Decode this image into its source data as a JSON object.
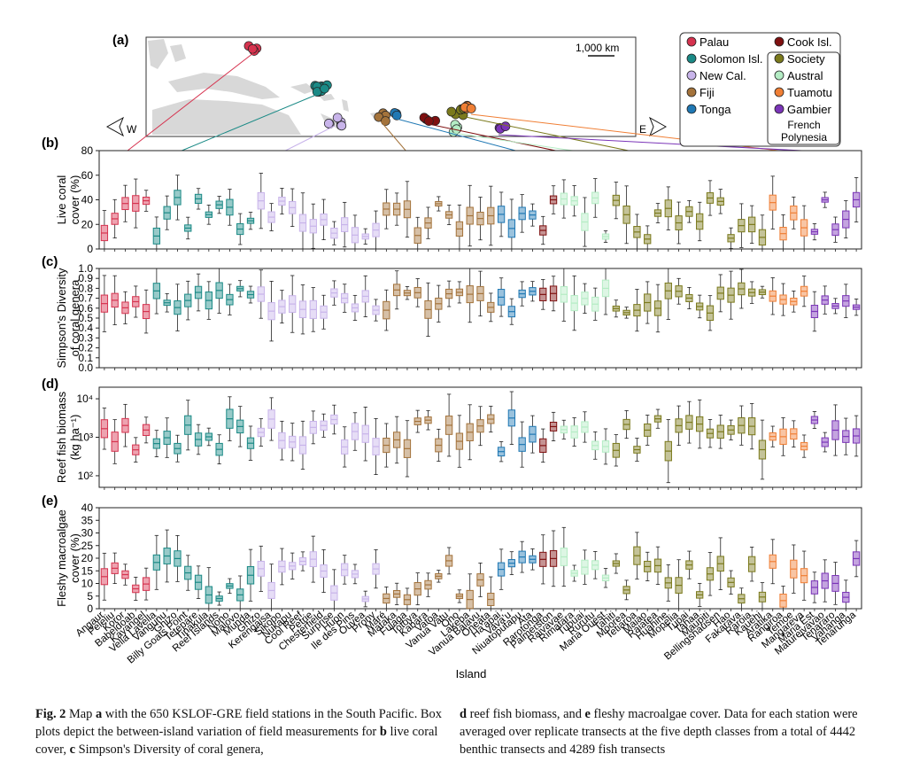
{
  "panel_labels": [
    "(a)",
    "(b)",
    "(c)",
    "(d)",
    "(e)"
  ],
  "map": {
    "scale_label": "1,000 km",
    "compass_west": "W",
    "compass_east": "E",
    "legend": [
      {
        "name": "Palau",
        "color": "#d6334f"
      },
      {
        "name": "Solomon Isl.",
        "color": "#1a8a86"
      },
      {
        "name": "New Cal.",
        "color": "#c8b4ea"
      },
      {
        "name": "Fiji",
        "color": "#a4733b"
      },
      {
        "name": "Tonga",
        "color": "#1f78b4"
      },
      {
        "name": "Cook Isl.",
        "color": "#7f1010"
      },
      {
        "name": "Society",
        "color": "#7b7a1c"
      },
      {
        "name": "Austral",
        "color": "#b4ecc4"
      },
      {
        "name": "Tuamotu",
        "color": "#f07f35"
      },
      {
        "name": "Gambier",
        "color": "#7b35b8"
      }
    ],
    "legend_group_label": [
      "French",
      "Polynesia"
    ]
  },
  "chart_data": [
    {
      "type": "box",
      "panel": "(b)",
      "ylabel": [
        "Live coral",
        "cover (%)"
      ],
      "ylim": [
        0,
        80
      ],
      "yticks": [
        "0",
        "20",
        "40",
        "60",
        "80"
      ]
    },
    {
      "type": "box",
      "panel": "(c)",
      "ylabel": [
        "Simpson's Diversity",
        "of coral genera"
      ],
      "ylim": [
        0,
        1
      ],
      "yticks": [
        "0.0",
        "0.1",
        "0.2",
        "0.3",
        "0.4",
        "0.5",
        "0.6",
        "0.7",
        "0.8",
        "0.9",
        "1.0"
      ]
    },
    {
      "type": "box",
      "panel": "(d)",
      "ylabel": [
        "Reef fish biomass",
        "(kg ha⁻¹)"
      ],
      "ylim": [
        50,
        20000
      ],
      "scale": "log",
      "yticks": [
        "10⁴",
        "10³",
        "10²"
      ]
    },
    {
      "type": "box",
      "panel": "(e)",
      "ylabel": [
        "Fleshy macroalgae",
        "cover (%)"
      ],
      "ylim": [
        0,
        40
      ],
      "yticks": [
        "0",
        "5",
        "10",
        "15",
        "20",
        "25",
        "30",
        "35",
        "40"
      ],
      "xlabel": "Island",
      "islands": [
        "Angaur",
        "Peleliu",
        "Koror",
        "Babeldoab",
        "Kayangel",
        "Vella Lavella",
        "Vangunu",
        "Ghizo",
        "Billy Goats Point",
        "Tetepare",
        "Tinakula",
        "Reef Islands",
        "Nono",
        "Malovo",
        "Munda",
        "Ghizo",
        "Kerengaisa",
        "Sikopo",
        "Nukapu",
        "Cool Reef",
        "Petrie",
        "Chesterfield",
        "Surprise",
        "Huon",
        "Ile des Pins",
        "Ouvea",
        "Prony",
        "Maré",
        "Mataka",
        "Fulaga",
        "Totoya",
        "Kabara",
        "Vatoa",
        "Vanua Vatu",
        "Ono",
        "Lakeba",
        "Vanua Balavu",
        "Oneata",
        "Ha'apai",
        "Vava'u",
        "Niuatoputapu",
        "Ata",
        "Rarotonga",
        "Palmerston",
        "Raivavae",
        "Rimatara",
        "Tubuai",
        "Rurutu",
        "Maria Ouest",
        "Tahiti",
        "Moorea",
        "Tetiaroa",
        "Maiao",
        "Raiatea",
        "Huahine",
        "Mopelia",
        "Tupai",
        "Tahaa",
        "Maupiti",
        "Bellingshausen",
        "Hao",
        "Fakarava",
        "Raroia",
        "Kauehi",
        "Aratika",
        "Rangiroa",
        "Temoe",
        "Mangareva",
        "Maria Est",
        "Matureivavao",
        "Tenararo",
        "Vahanga",
        "Tenarunga"
      ],
      "series_colors": [
        "#d6334f",
        "#1a8a86",
        "#c8b4ea",
        "#a4733b",
        "#1f78b4",
        "#7f1010",
        "#b4ecc4",
        "#7b7a1c",
        "#f07f35",
        "#7b35b8"
      ]
    }
  ],
  "caption_left": {
    "fig": "Fig. 2",
    "p1": "  Map ",
    "a": "a",
    "p2": " with the 650 KSLOF-GRE field stations in the South Pacific. Box plots depict the between-island variation of field measurements for ",
    "b": "b",
    "p3": " live coral cover, ",
    "c": "c",
    "p4": " Simpson's Diversity of coral genera,"
  },
  "caption_right": {
    "d": "d",
    "p1": " reef fish biomass, and ",
    "e": "e",
    "p2": " fleshy macroalgae cover. Data for each station were averaged over replicate transects at the five depth classes from a total of 4442 benthic transects and 4289 fish transects"
  }
}
